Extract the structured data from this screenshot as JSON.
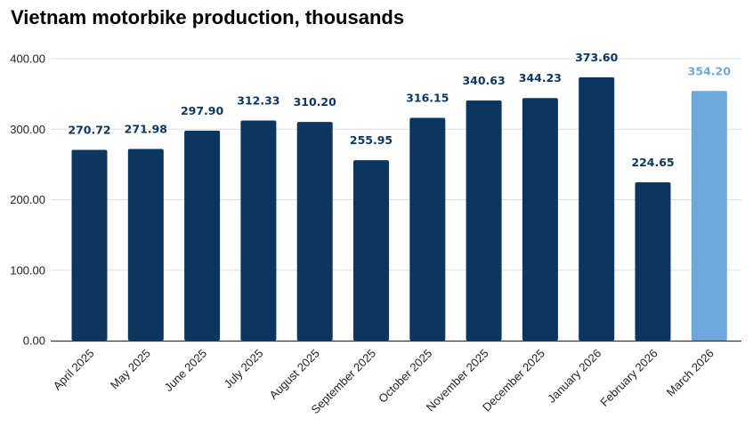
{
  "chart_data": {
    "type": "bar",
    "title": "Vietnam motorbike production, thousands",
    "xlabel": "",
    "ylabel": "",
    "ylim": [
      0,
      400
    ],
    "yticks": [
      "0.00",
      "100.00",
      "200.00",
      "300.00",
      "400.00"
    ],
    "ytick_values": [
      0,
      100,
      200,
      300,
      400
    ],
    "grid": true,
    "legend": "none",
    "categories": [
      "April 2025",
      "May 2025",
      "June 2025",
      "July 2025",
      "August 2025",
      "September 2025",
      "October 2025",
      "November 2025",
      "December 2025",
      "January 2026",
      "February 2026",
      "March 2026"
    ],
    "values": [
      270.72,
      271.98,
      297.9,
      312.33,
      310.2,
      255.95,
      316.15,
      340.63,
      344.23,
      373.6,
      224.65,
      354.2
    ],
    "data_labels": [
      "270.72",
      "271.98",
      "297.90",
      "312.33",
      "310.20",
      "255.95",
      "316.15",
      "340.63",
      "344.23",
      "373.60",
      "224.65",
      "354.20"
    ],
    "colors": {
      "primary": "#0b365f",
      "highlight": "#6fa8dc",
      "highlight_category": "March 2026",
      "gridline": "#dddddd",
      "baseline": "#333333"
    }
  }
}
